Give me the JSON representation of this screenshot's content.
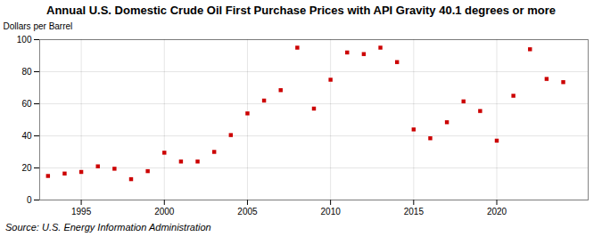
{
  "chart_data": {
    "type": "scatter",
    "title": "Annual U.S. Domestic Crude Oil First Purchase Prices with API Gravity 40.1 degrees or more",
    "ylabel": "Dollars per Barrel",
    "annotations": [
      "Source: U.S. Energy Information Administration"
    ],
    "x": [
      1993,
      1994,
      1995,
      1996,
      1997,
      1998,
      1999,
      2000,
      2001,
      2002,
      2003,
      2004,
      2005,
      2006,
      2007,
      2008,
      2009,
      2010,
      2011,
      2012,
      2013,
      2014,
      2015,
      2016,
      2017,
      2018,
      2019,
      2020,
      2021,
      2022,
      2023,
      2024
    ],
    "values": [
      15.0,
      16.5,
      17.5,
      21.0,
      19.5,
      13.0,
      18.0,
      29.5,
      24.0,
      24.0,
      30.0,
      40.5,
      54.0,
      62.0,
      68.5,
      95.0,
      57.0,
      75.0,
      92.0,
      91.0,
      95.0,
      86.0,
      44.0,
      38.5,
      48.5,
      61.5,
      55.5,
      37.0,
      65.0,
      94.0,
      75.5,
      73.5
    ],
    "color": "#cc0000",
    "marker": "square",
    "xlim": [
      1992.5,
      2025.5
    ],
    "ylim": [
      0,
      100
    ],
    "xticks": [
      1995,
      2000,
      2005,
      2010,
      2015,
      2020
    ],
    "yticks": [
      0,
      20,
      40,
      60,
      80,
      100
    ],
    "grid": true
  }
}
